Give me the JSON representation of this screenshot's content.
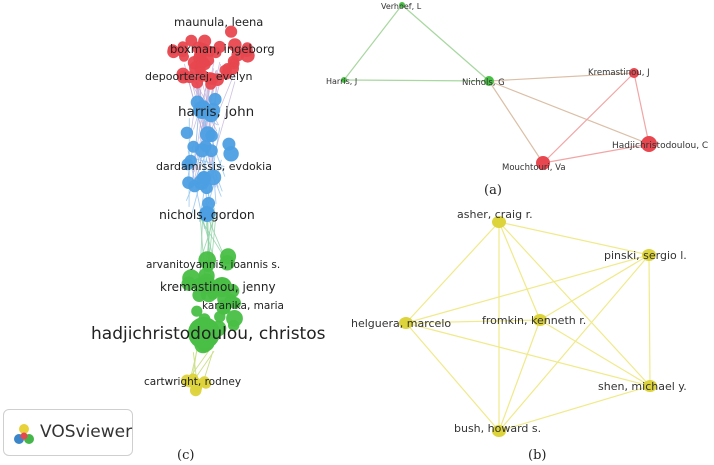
{
  "panel_captions": {
    "a": "(a)",
    "b": "(b)",
    "c": "(c)"
  },
  "watermark": {
    "logo_text": "VOSviewer",
    "icon": "vosviewer-logo-icon"
  },
  "colors": {
    "red": "#e8474f",
    "blue": "#4d9fe3",
    "green": "#49bf45",
    "yellow": "#ddd33a",
    "yellow_edge": "#f0ea8a",
    "green_edge": "#a8d7a0",
    "red_edge": "#f2a5a5",
    "brown_edge": "#dbbfa6"
  },
  "panel_a": {
    "nodes": [
      {
        "id": "verhoef",
        "label": "Verhoef, L",
        "color": "green"
      },
      {
        "id": "harris",
        "label": "Harris, J",
        "color": "green"
      },
      {
        "id": "nichols",
        "label": "Nichols, G",
        "color": "green"
      },
      {
        "id": "kremastinou",
        "label": "Kremastinou, J",
        "color": "red"
      },
      {
        "id": "hadjichristodoulou",
        "label": "Hadjichristodoulou, C",
        "color": "red"
      },
      {
        "id": "mouchtouri",
        "label": "Mouchtouri, Va",
        "color": "red"
      }
    ],
    "edges": [
      [
        "verhoef",
        "harris",
        "green"
      ],
      [
        "verhoef",
        "nichols",
        "green"
      ],
      [
        "harris",
        "nichols",
        "green"
      ],
      [
        "nichols",
        "kremastinou",
        "brown"
      ],
      [
        "nichols",
        "hadjichristodoulou",
        "brown"
      ],
      [
        "nichols",
        "mouchtouri",
        "brown"
      ],
      [
        "kremastinou",
        "hadjichristodoulou",
        "red"
      ],
      [
        "kremastinou",
        "mouchtouri",
        "red"
      ],
      [
        "hadjichristodoulou",
        "mouchtouri",
        "red"
      ]
    ]
  },
  "panel_b": {
    "nodes": [
      {
        "id": "asher",
        "label": "asher, craig r."
      },
      {
        "id": "pinski",
        "label": "pinski, sergio l."
      },
      {
        "id": "helguera",
        "label": "helguera, marcelo"
      },
      {
        "id": "fromkin",
        "label": "fromkin, kenneth r."
      },
      {
        "id": "shen",
        "label": "shen, michael y."
      },
      {
        "id": "bush",
        "label": "bush, howard s."
      }
    ],
    "edges": [
      [
        "asher",
        "pinski"
      ],
      [
        "asher",
        "helguera"
      ],
      [
        "asher",
        "fromkin"
      ],
      [
        "asher",
        "shen"
      ],
      [
        "asher",
        "bush"
      ],
      [
        "pinski",
        "helguera"
      ],
      [
        "pinski",
        "fromkin"
      ],
      [
        "pinski",
        "shen"
      ],
      [
        "pinski",
        "bush"
      ],
      [
        "helguera",
        "fromkin"
      ],
      [
        "helguera",
        "shen"
      ],
      [
        "helguera",
        "bush"
      ],
      [
        "fromkin",
        "shen"
      ],
      [
        "fromkin",
        "bush"
      ],
      [
        "shen",
        "bush"
      ]
    ]
  },
  "panel_c": {
    "labels": [
      {
        "id": "maunula",
        "text": "maunula, leena",
        "cluster": "red"
      },
      {
        "id": "boxman",
        "text": "boxman, ingeborg",
        "cluster": "red"
      },
      {
        "id": "depoorterej",
        "text": "depoorterej, evelyn",
        "cluster": "red"
      },
      {
        "id": "harris_john",
        "text": "harris, john",
        "cluster": "blue"
      },
      {
        "id": "dardamissis",
        "text": "dardamissis, evdokia",
        "cluster": "blue"
      },
      {
        "id": "nichols_gordon",
        "text": "nichols, gordon",
        "cluster": "blue"
      },
      {
        "id": "arvanitoyannis",
        "text": "arvanitoyannis, ioannis s.",
        "cluster": "green"
      },
      {
        "id": "kremastinou_jenny",
        "text": "kremastinou, jenny",
        "cluster": "green"
      },
      {
        "id": "karanika",
        "text": "karanika, maria",
        "cluster": "green"
      },
      {
        "id": "hadjichristodoulou_christos",
        "text": "hadjichristodoulou, christos",
        "cluster": "green"
      },
      {
        "id": "cartwright",
        "text": "cartwright, rodney",
        "cluster": "yellow"
      }
    ]
  }
}
